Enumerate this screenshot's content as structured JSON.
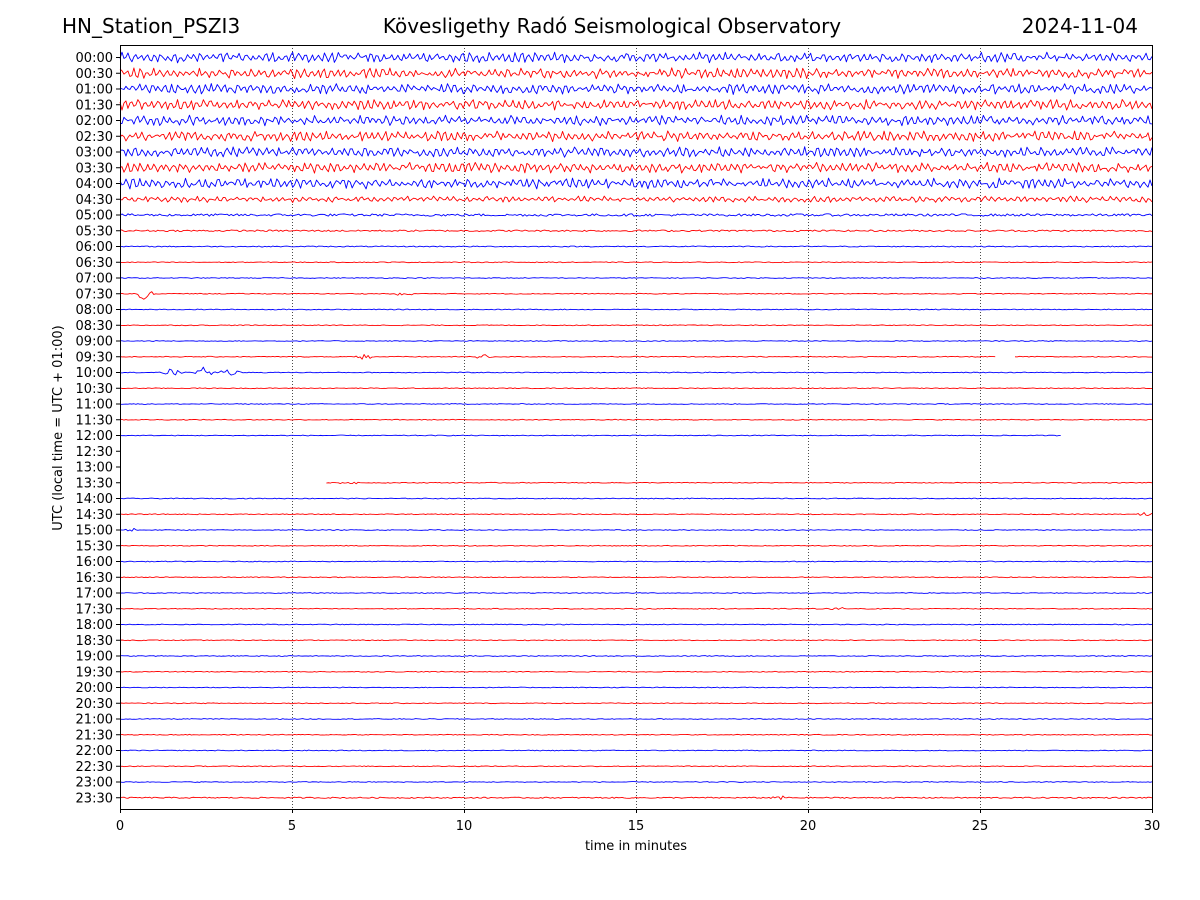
{
  "header": {
    "station": "HN_Station_PSZI3",
    "observatory": "Kövesligethy Radó Seismological Observatory",
    "date": "2024-11-04"
  },
  "chart_data": {
    "type": "line",
    "title": "Kövesligethy Radó Seismological Observatory",
    "xlabel": "time in minutes",
    "ylabel": "UTC (local time = UTC + 01:00)",
    "xlim": [
      0,
      30
    ],
    "x_ticks": [
      "0",
      "5",
      "10",
      "15",
      "20",
      "25",
      "30"
    ],
    "grid_x_every_minutes": 5,
    "row_minutes": 30,
    "colors": {
      "even_row": "#0000ff",
      "odd_row": "#ff0000",
      "grid": "#000000"
    },
    "series": [
      {
        "label": "00:00",
        "amplitude": 5.0
      },
      {
        "label": "00:30",
        "amplitude": 5.0
      },
      {
        "label": "01:00",
        "amplitude": 5.0
      },
      {
        "label": "01:30",
        "amplitude": 5.0
      },
      {
        "label": "02:00",
        "amplitude": 5.0
      },
      {
        "label": "02:30",
        "amplitude": 5.0
      },
      {
        "label": "03:00",
        "amplitude": 5.0
      },
      {
        "label": "03:30",
        "amplitude": 5.0
      },
      {
        "label": "04:00",
        "amplitude": 5.0
      },
      {
        "label": "04:30",
        "amplitude": 3.0
      },
      {
        "label": "05:00",
        "amplitude": 1.2
      },
      {
        "label": "05:30",
        "amplitude": 0.8
      },
      {
        "label": "06:00",
        "amplitude": 0.5
      },
      {
        "label": "06:30",
        "amplitude": 0.4
      },
      {
        "label": "07:00",
        "amplitude": 0.4
      },
      {
        "label": "07:30",
        "amplitude": 0.4,
        "events": [
          {
            "t": 0.7,
            "amp": 4
          },
          {
            "t": 8.2,
            "amp": 4
          }
        ]
      },
      {
        "label": "08:00",
        "amplitude": 0.4
      },
      {
        "label": "08:30",
        "amplitude": 0.4
      },
      {
        "label": "09:00",
        "amplitude": 0.4
      },
      {
        "label": "09:30",
        "amplitude": 0.4,
        "events": [
          {
            "t": 7.1,
            "amp": 2
          },
          {
            "t": 10.6,
            "amp": 2
          }
        ],
        "gaps": [
          [
            25.5,
            26.0
          ]
        ]
      },
      {
        "label": "10:00",
        "amplitude": 0.4,
        "events": [
          {
            "t": 1.5,
            "amp": 3
          },
          {
            "t": 2.5,
            "amp": 5
          },
          {
            "t": 3.2,
            "amp": 4
          }
        ]
      },
      {
        "label": "10:30",
        "amplitude": 0.4
      },
      {
        "label": "11:00",
        "amplitude": 0.4
      },
      {
        "label": "11:30",
        "amplitude": 0.4
      },
      {
        "label": "12:00",
        "amplitude": 0.4,
        "gaps": [
          [
            27.35,
            30
          ]
        ]
      },
      {
        "label": "12:30",
        "amplitude": 0.0,
        "gaps": [
          [
            0,
            30
          ]
        ]
      },
      {
        "label": "13:00",
        "amplitude": 0.0,
        "gaps": [
          [
            0,
            30
          ]
        ]
      },
      {
        "label": "13:30",
        "amplitude": 0.4,
        "gaps": [
          [
            0,
            6.0
          ]
        ],
        "events": [
          {
            "t": 6.6,
            "amp": 2
          }
        ]
      },
      {
        "label": "14:00",
        "amplitude": 0.4
      },
      {
        "label": "14:30",
        "amplitude": 0.4,
        "events": [
          {
            "t": 29.8,
            "amp": 2
          }
        ]
      },
      {
        "label": "15:00",
        "amplitude": 0.4,
        "events": [
          {
            "t": 0.4,
            "amp": 1.5
          }
        ]
      },
      {
        "label": "15:30",
        "amplitude": 0.4
      },
      {
        "label": "16:00",
        "amplitude": 0.4
      },
      {
        "label": "16:30",
        "amplitude": 0.4
      },
      {
        "label": "17:00",
        "amplitude": 0.4
      },
      {
        "label": "17:30",
        "amplitude": 0.4,
        "events": [
          {
            "t": 20.8,
            "amp": 1.5
          }
        ]
      },
      {
        "label": "18:00",
        "amplitude": 0.4
      },
      {
        "label": "18:30",
        "amplitude": 0.4
      },
      {
        "label": "19:00",
        "amplitude": 0.4
      },
      {
        "label": "19:30",
        "amplitude": 0.4
      },
      {
        "label": "20:00",
        "amplitude": 0.4
      },
      {
        "label": "20:30",
        "amplitude": 0.4
      },
      {
        "label": "21:00",
        "amplitude": 0.4
      },
      {
        "label": "21:30",
        "amplitude": 0.4
      },
      {
        "label": "22:00",
        "amplitude": 0.4
      },
      {
        "label": "22:30",
        "amplitude": 0.4
      },
      {
        "label": "23:00",
        "amplitude": 0.4
      },
      {
        "label": "23:30",
        "amplitude": 0.6,
        "events": [
          {
            "t": 19.2,
            "amp": 2
          }
        ]
      }
    ]
  }
}
